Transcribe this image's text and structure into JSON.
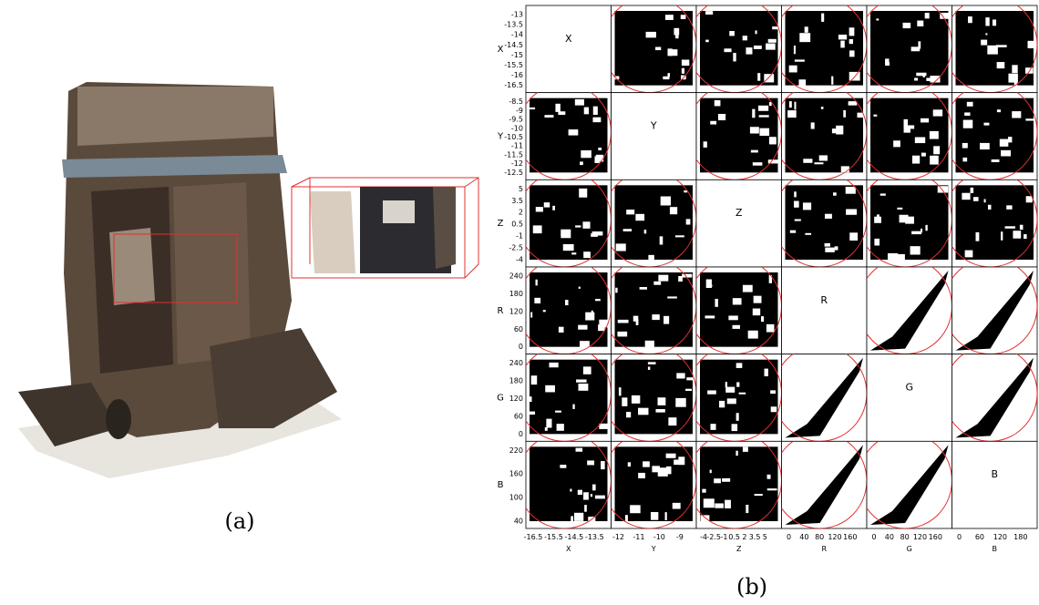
{
  "figure": {
    "panel_a": {
      "caption": "(a)"
    },
    "panel_b": {
      "caption": "(b)",
      "variables": [
        {
          "name": "X",
          "left_ticks": [
            -13,
            -13.5,
            -14,
            -14.5,
            -15,
            -15.5,
            -16,
            -16.5
          ],
          "bottom_ticks": [
            -16.5,
            -15.5,
            -14.5,
            -13.5
          ]
        },
        {
          "name": "Y",
          "left_ticks": [
            -8.5,
            -9,
            -9.5,
            -10,
            -10.5,
            -11,
            -11.5,
            -12,
            -12.5
          ],
          "bottom_ticks": [
            -12,
            -11,
            -10,
            -9
          ]
        },
        {
          "name": "Z",
          "left_ticks": [
            5,
            3.5,
            2,
            0.5,
            -1,
            -2.5,
            -4
          ],
          "bottom_ticks": [
            -4,
            -2.5,
            -1,
            0.5,
            2,
            3.5,
            5
          ]
        },
        {
          "name": "R",
          "left_ticks": [
            240,
            180,
            120,
            60,
            0
          ],
          "bottom_ticks": [
            0,
            40,
            80,
            120,
            160
          ]
        },
        {
          "name": "G",
          "left_ticks": [
            240,
            180,
            120,
            60,
            0
          ],
          "bottom_ticks": [
            0,
            40,
            80,
            120,
            160
          ]
        },
        {
          "name": "B",
          "left_ticks": [
            220,
            160,
            100,
            40
          ],
          "bottom_ticks": [
            0,
            60,
            120,
            180
          ]
        }
      ]
    }
  }
}
